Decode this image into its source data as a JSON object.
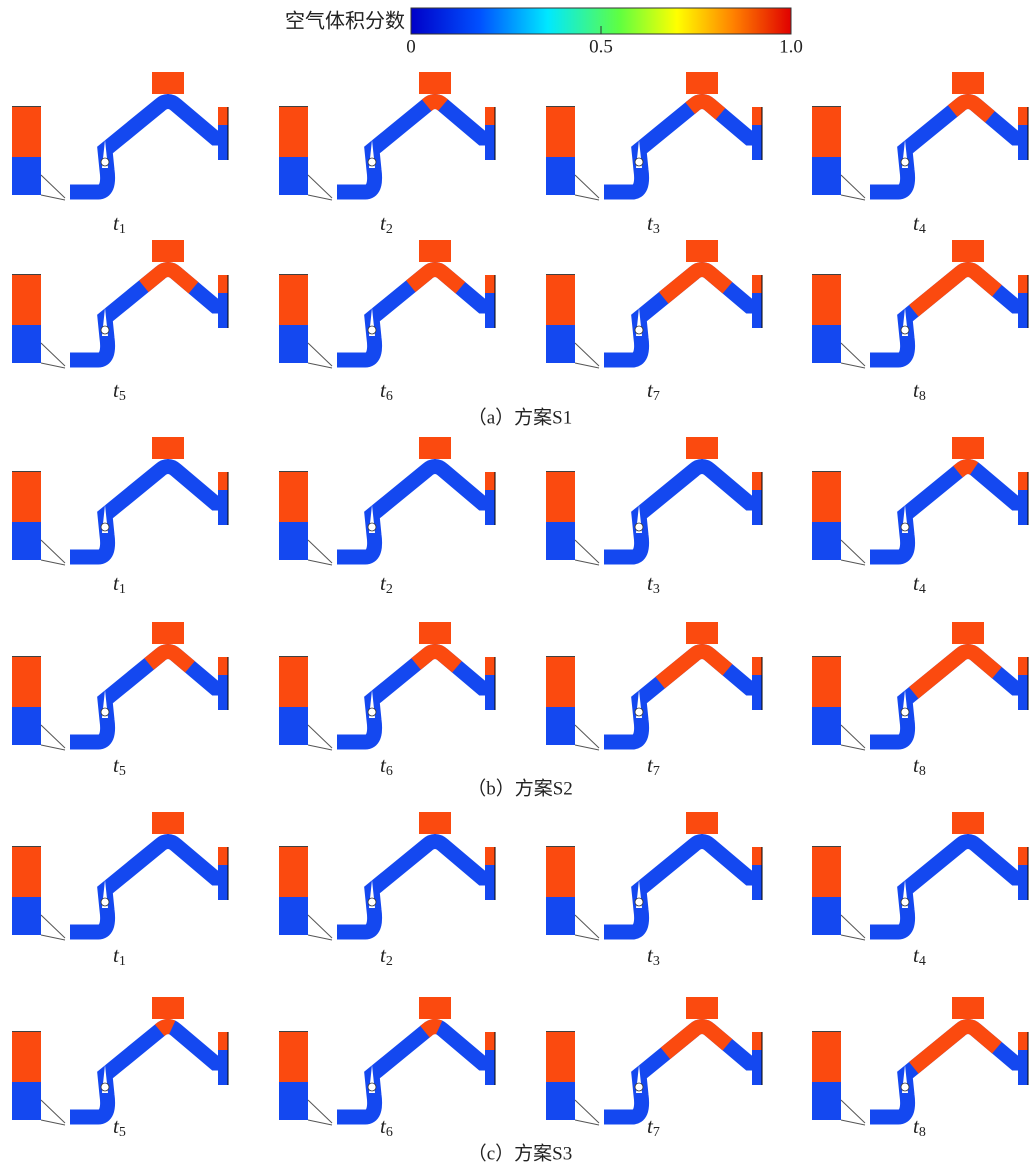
{
  "colorbar": {
    "label": "空气体积分数",
    "ticks": [
      0,
      0.5,
      {
        "value": 1,
        "label": "1.0"
      }
    ]
  },
  "panels": [
    {
      "caption": "（a）方案S1",
      "times": [
        {
          "var": "t",
          "sub": "1"
        },
        {
          "var": "t",
          "sub": "2"
        },
        {
          "var": "t",
          "sub": "3"
        },
        {
          "var": "t",
          "sub": "4"
        },
        {
          "var": "t",
          "sub": "5"
        },
        {
          "var": "t",
          "sub": "6"
        },
        {
          "var": "t",
          "sub": "7"
        },
        {
          "var": "t",
          "sub": "8"
        }
      ]
    },
    {
      "caption": "（b）方案S2",
      "times": [
        {
          "var": "t",
          "sub": "1"
        },
        {
          "var": "t",
          "sub": "2"
        },
        {
          "var": "t",
          "sub": "3"
        },
        {
          "var": "t",
          "sub": "4"
        },
        {
          "var": "t",
          "sub": "5"
        },
        {
          "var": "t",
          "sub": "6"
        },
        {
          "var": "t",
          "sub": "7"
        },
        {
          "var": "t",
          "sub": "8"
        }
      ]
    },
    {
      "caption": "（c）方案S3",
      "times": [
        {
          "var": "t",
          "sub": "1"
        },
        {
          "var": "t",
          "sub": "2"
        },
        {
          "var": "t",
          "sub": "3"
        },
        {
          "var": "t",
          "sub": "4"
        },
        {
          "var": "t",
          "sub": "5"
        },
        {
          "var": "t",
          "sub": "6"
        },
        {
          "var": "t",
          "sub": "7"
        },
        {
          "var": "t",
          "sub": "8"
        }
      ]
    }
  ]
}
